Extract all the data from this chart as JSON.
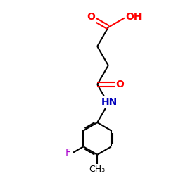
{
  "bg_color": "#ffffff",
  "atom_colors": {
    "O": "#ff0000",
    "N": "#0000bb",
    "F": "#aa00cc",
    "C": "#000000"
  },
  "figsize": [
    2.5,
    2.5
  ],
  "dpi": 100,
  "bond_lw": 1.5,
  "font_size": 9.5,
  "ring_r": 0.95,
  "xlim": [
    0,
    10
  ],
  "ylim": [
    0,
    10
  ]
}
